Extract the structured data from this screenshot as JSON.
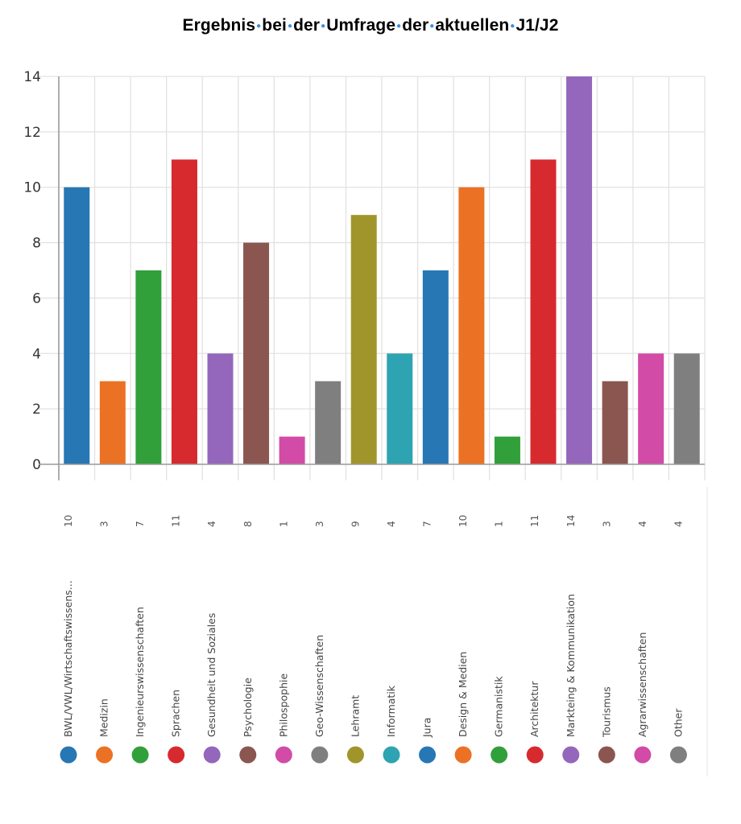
{
  "chart_data": {
    "type": "bar",
    "title": "Ergebnis bei der Umfrage der aktuellen J1/J2",
    "xlabel": "",
    "ylabel": "",
    "ylim": [
      0,
      14
    ],
    "yticks": [
      0,
      2,
      4,
      6,
      8,
      10,
      12,
      14
    ],
    "grid": true,
    "legend": "bottom-table",
    "categories": [
      "BWL/VWL/Wirtschaftswissens...",
      "Medizin",
      "Ingenieurswissenschaften",
      "Sprachen",
      "Gesundheit und Soziales",
      "Psychologie",
      "Philospophie",
      "Geo-Wissenschaften",
      "Lehramt",
      "Informatik",
      "Jura",
      "Design & Medien",
      "Germanistik",
      "Architektur",
      "Markteing & Kommunikation",
      "Tourismus",
      "Agrarwissenschaften",
      "Other"
    ],
    "values": [
      10,
      3,
      7,
      11,
      4,
      8,
      1,
      3,
      9,
      4,
      7,
      10,
      1,
      11,
      14,
      3,
      4,
      4
    ],
    "colors": [
      "#2677b4",
      "#eb7224",
      "#31a03b",
      "#d62a2f",
      "#9467bc",
      "#8b5650",
      "#d24ba6",
      "#7f7f7f",
      "#a0952a",
      "#2ea3b2",
      "#2677b4",
      "#eb7224",
      "#31a03b",
      "#d62a2f",
      "#9467bc",
      "#8b5650",
      "#d24ba6",
      "#7f7f7f"
    ]
  }
}
